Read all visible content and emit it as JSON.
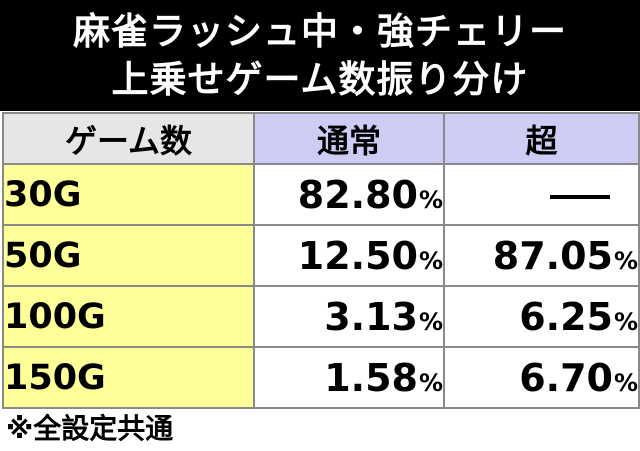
{
  "title": {
    "line1": "麻雀ラッシュ中・強チェリー",
    "line2": "上乗せゲーム数振り分け"
  },
  "table": {
    "headers": [
      "ゲーム数",
      "通常",
      "超"
    ],
    "rows": [
      {
        "games": "30G",
        "normal": "82.80",
        "super": ""
      },
      {
        "games": "50G",
        "normal": "12.50",
        "super": "87.05"
      },
      {
        "games": "100G",
        "normal": "3.13",
        "super": "6.25"
      },
      {
        "games": "150G",
        "normal": "1.58",
        "super": "6.70"
      }
    ],
    "percent_sign": "%"
  },
  "footnote": "※全設定共通",
  "colors": {
    "title_bg": "#000000",
    "title_text": "#ffffff",
    "label_bg": "#ffff99",
    "header_games_bg": "#e6e6e6",
    "header_mode_bg": "#ccccf4",
    "border": "#8a8a8a"
  }
}
